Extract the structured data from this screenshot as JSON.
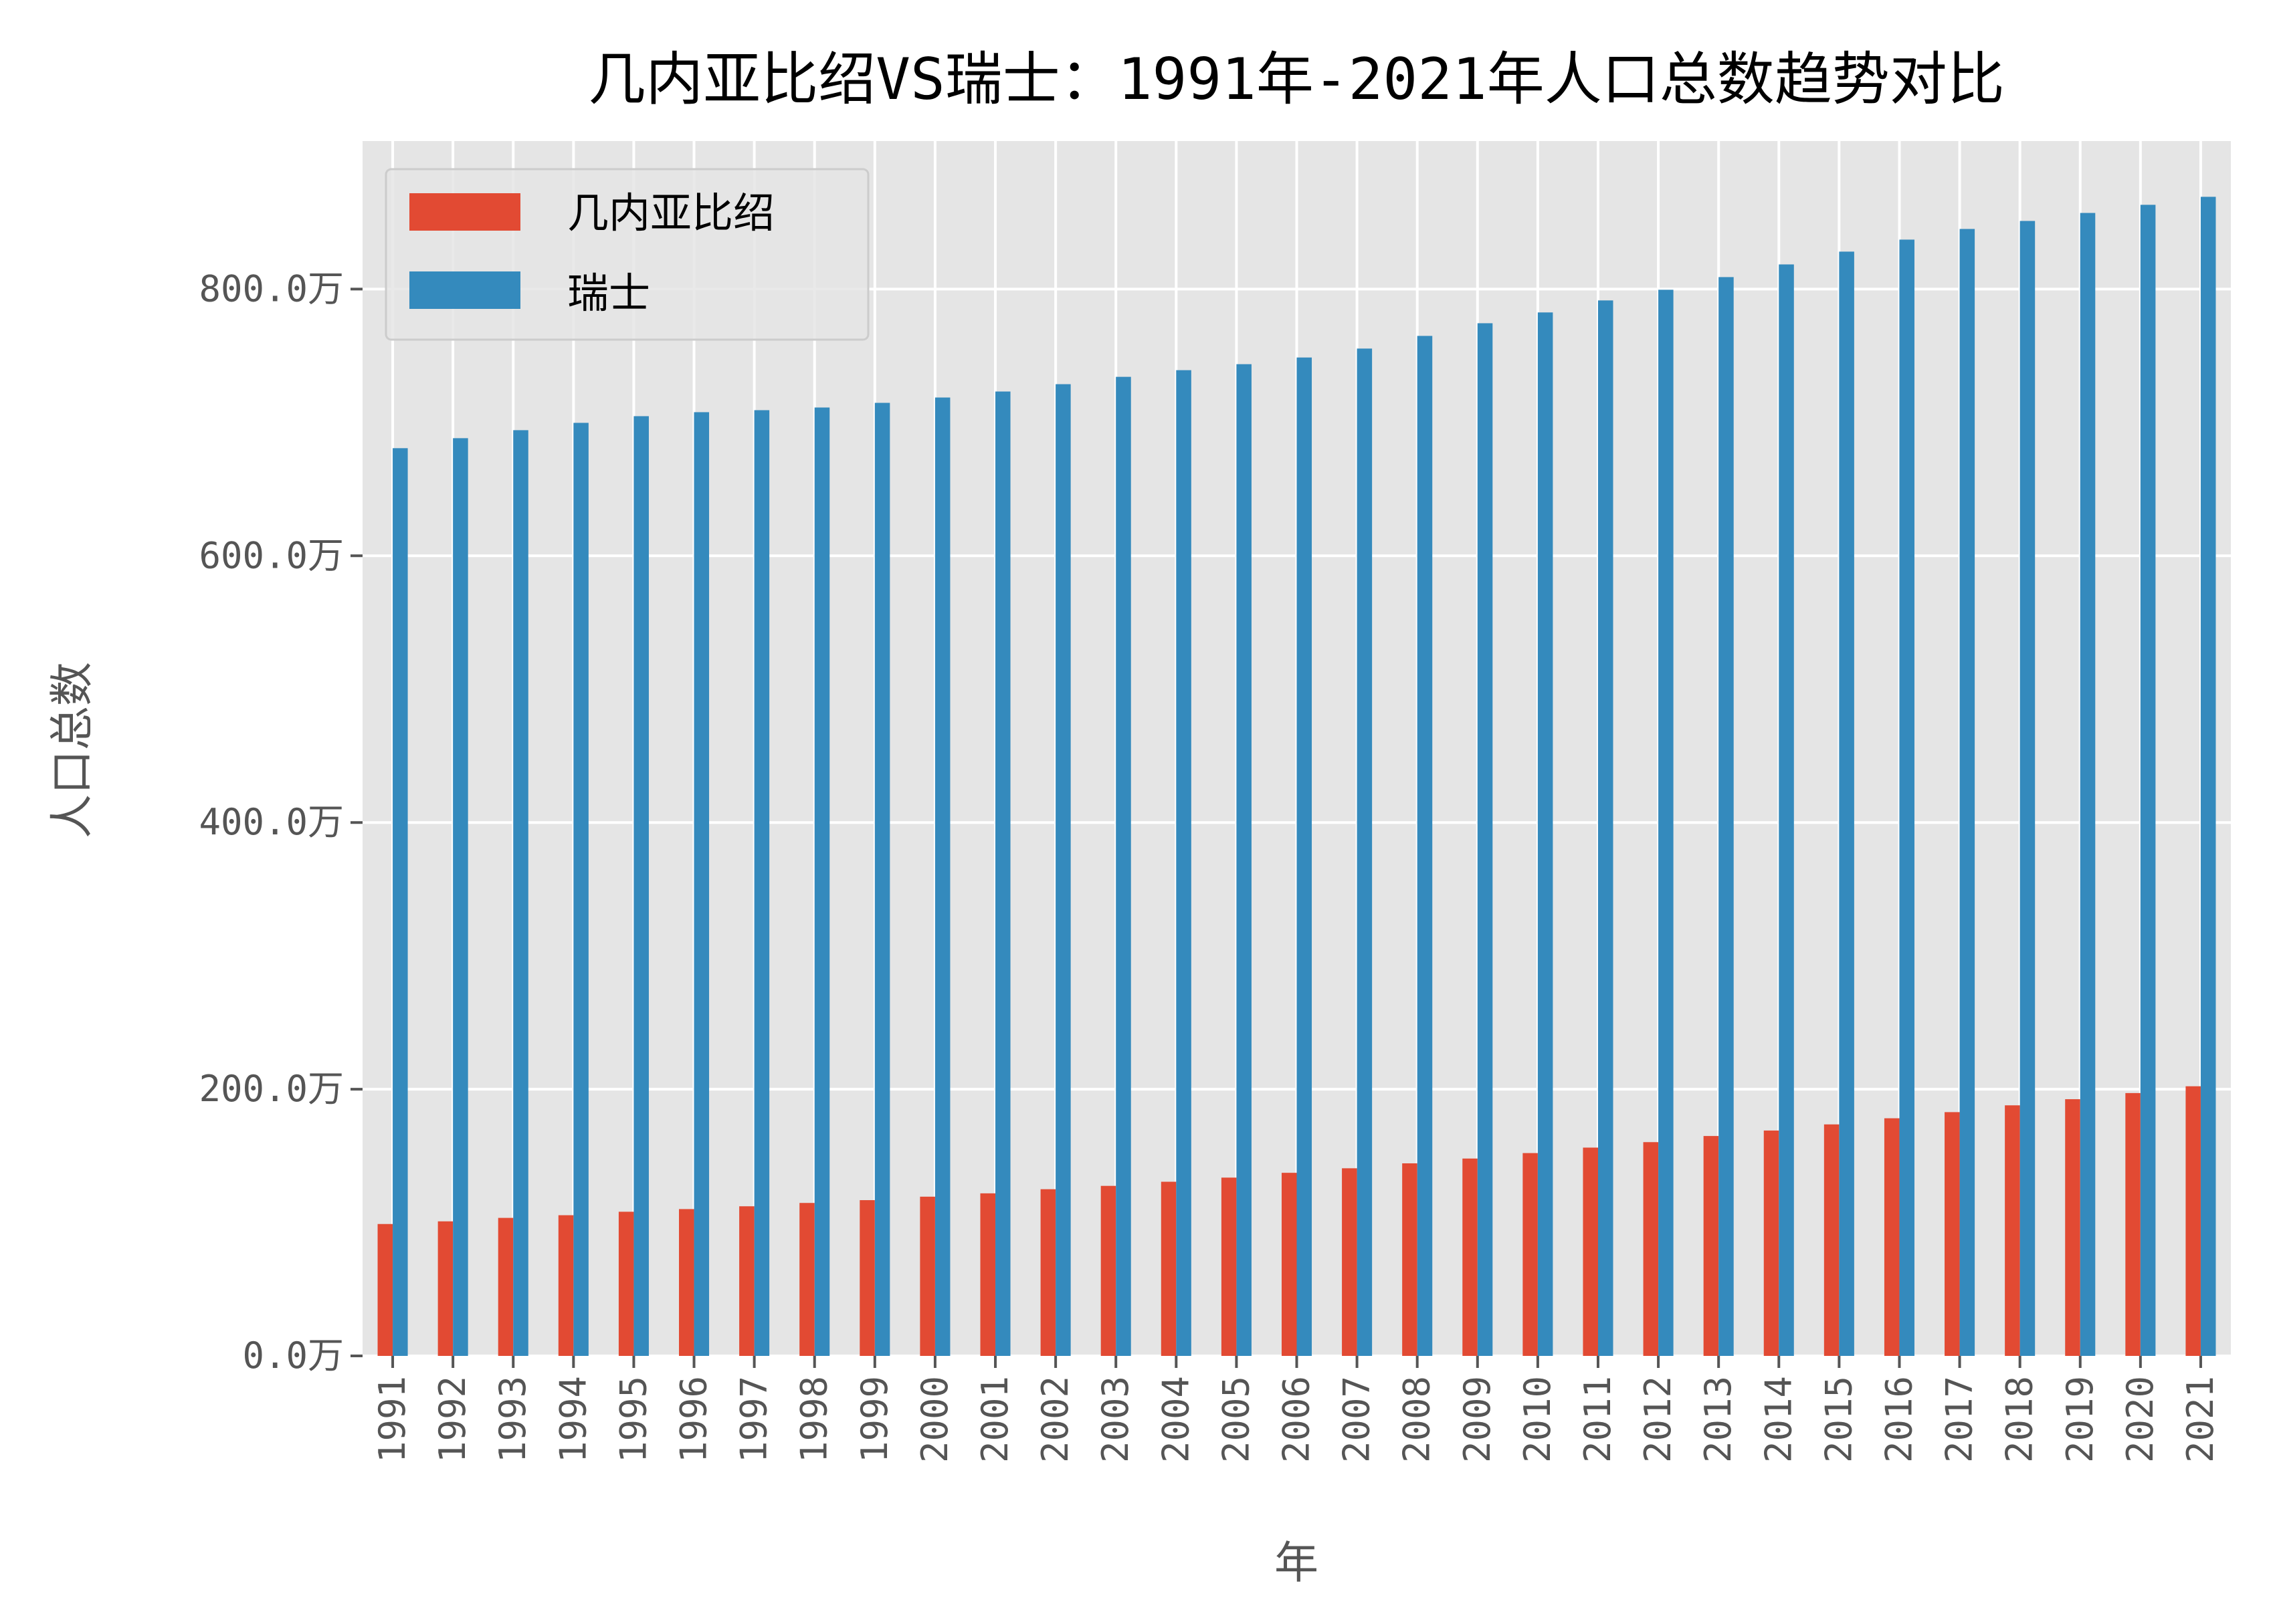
{
  "chart_data": {
    "type": "bar",
    "title": "几内亚比绍VS瑞士：1991年-2021年人口总数趋势对比",
    "xlabel": "年",
    "ylabel": "人口总数",
    "ylim": [
      0,
      911
    ],
    "y_unit_suffix": "万",
    "y_ticks": [
      0,
      200,
      400,
      600,
      800
    ],
    "y_tick_labels": [
      "0.0万",
      "200.0万",
      "400.0万",
      "600.0万",
      "800.0万"
    ],
    "grid": true,
    "legend_position": "top-left",
    "categories": [
      "1991",
      "1992",
      "1993",
      "1994",
      "1995",
      "1996",
      "1997",
      "1998",
      "1999",
      "2000",
      "2001",
      "2002",
      "2003",
      "2004",
      "2005",
      "2006",
      "2007",
      "2008",
      "2009",
      "2010",
      "2011",
      "2012",
      "2013",
      "2014",
      "2015",
      "2016",
      "2017",
      "2018",
      "2019",
      "2020",
      "2021"
    ],
    "series": [
      {
        "name": "几内亚比绍",
        "color": "#E24A33",
        "values": [
          98.9,
          100.9,
          103.5,
          105.5,
          108.1,
          110.1,
          112.2,
          114.7,
          116.8,
          119.4,
          121.9,
          125.0,
          127.5,
          130.6,
          133.7,
          137.3,
          140.7,
          144.4,
          148.0,
          152.1,
          156.2,
          160.3,
          164.9,
          169.0,
          173.6,
          178.2,
          182.8,
          187.9,
          192.5,
          197.1,
          202.2
        ]
      },
      {
        "name": "瑞士",
        "color": "#348ABD",
        "values": [
          680.7,
          688.2,
          694.2,
          699.7,
          704.7,
          707.7,
          709.2,
          711.2,
          714.7,
          718.7,
          723.2,
          728.7,
          734.2,
          739.2,
          743.7,
          748.7,
          755.4,
          764.9,
          774.4,
          782.5,
          791.5,
          799.5,
          809.0,
          818.5,
          828.1,
          837.1,
          845.1,
          851.1,
          857.1,
          863.2,
          869.2
        ]
      }
    ],
    "plot_background": "#E5E5E5",
    "grid_color": "#FFFFFF"
  }
}
